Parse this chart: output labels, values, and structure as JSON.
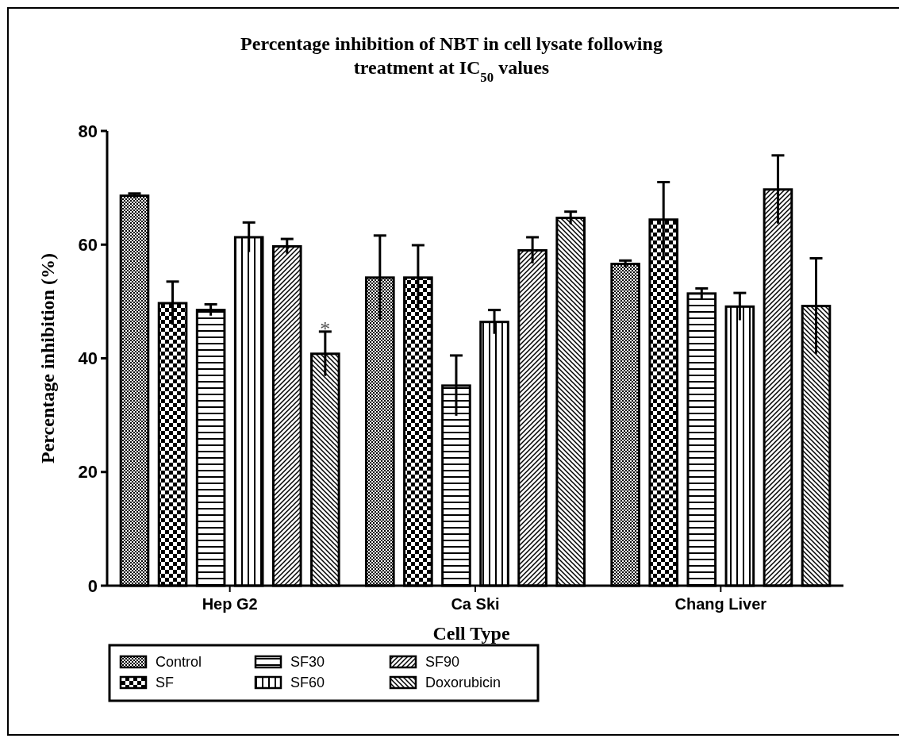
{
  "chart_data": {
    "type": "bar",
    "title": "Percentage inhibition of NBT in cell lysate following treatment at IC$_{50}$ values",
    "xlabel": "Cell Type",
    "ylabel": "Percentage inhibition (%)",
    "categories": [
      "Hep G2",
      "Ca Ski",
      "Chang Liver"
    ],
    "series": [
      {
        "name": "Control",
        "color": "#000000",
        "values": [
          68.6,
          54.2,
          56.6
        ],
        "errors": [
          0.4,
          7.4,
          0.6
        ]
      },
      {
        "name": "SF",
        "color": "#000000",
        "values": [
          49.7,
          54.2,
          64.4
        ],
        "errors": [
          3.8,
          5.7,
          6.6
        ]
      },
      {
        "name": "SF30",
        "color": "#000000",
        "values": [
          48.5,
          35.2,
          51.4
        ],
        "errors": [
          1.0,
          5.3,
          0.9
        ]
      },
      {
        "name": "SF60",
        "color": "#000000",
        "values": [
          61.3,
          46.4,
          49.1
        ],
        "errors": [
          2.6,
          2.1,
          2.4
        ]
      },
      {
        "name": "SF90",
        "color": "#000000",
        "values": [
          59.7,
          59.0,
          69.7
        ],
        "errors": [
          1.3,
          2.3,
          6.0
        ]
      },
      {
        "name": "Doxorubicin",
        "color": "#000000",
        "values": [
          40.8,
          64.7,
          49.2
        ],
        "errors": [
          3.9,
          1.1,
          8.4
        ]
      }
    ],
    "ylim": [
      0,
      80
    ],
    "yticks": [
      0,
      20,
      40,
      60,
      80
    ],
    "grid": false,
    "legend": "bottom",
    "annotations": [
      "*"
    ]
  }
}
